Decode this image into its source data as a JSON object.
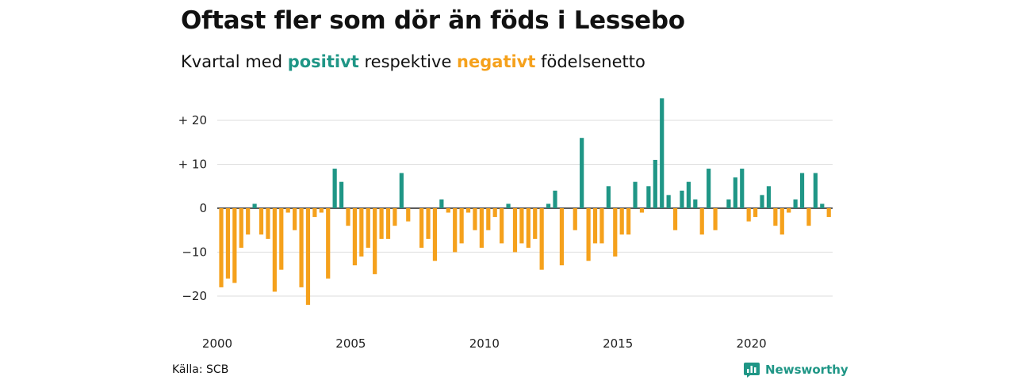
{
  "header": {
    "title": "Oftast fler som dör än föds i Lessebo",
    "subtitle_pre": "Kvartal med ",
    "subtitle_pos": "positivt",
    "subtitle_mid": " respektive ",
    "subtitle_neg": "negativt",
    "subtitle_post": " födelsenetto"
  },
  "footer": {
    "source": "Källa: SCB",
    "brand": "Newsworthy",
    "brand_icon": "bar-chart-logo-icon"
  },
  "colors": {
    "positive": "#1f9686",
    "negative": "#f5a11c",
    "grid": "#dddddd"
  },
  "chart_data": {
    "type": "bar",
    "xlabel": "",
    "ylabel": "",
    "ylim": [
      -25,
      25
    ],
    "y_ticks": [
      {
        "value": 20,
        "label": "+ 20"
      },
      {
        "value": 10,
        "label": "+ 10"
      },
      {
        "value": 0,
        "label": "0"
      },
      {
        "value": -10,
        "label": "−10"
      },
      {
        "value": -20,
        "label": "−20"
      }
    ],
    "x_ticks": [
      "2000",
      "2005",
      "2010",
      "2015",
      "2020"
    ],
    "start": "2000 Q1",
    "grid": true,
    "values": [
      -18,
      -16,
      -17,
      -9,
      -6,
      1,
      -6,
      -7,
      -19,
      -14,
      -1,
      -5,
      -18,
      -22,
      -2,
      -1,
      -16,
      9,
      6,
      -4,
      -13,
      -11,
      -9,
      -15,
      -7,
      -7,
      -4,
      8,
      -3,
      0,
      -9,
      -7,
      -12,
      2,
      -1,
      -10,
      -8,
      -1,
      -5,
      -9,
      -5,
      -2,
      -8,
      1,
      -10,
      -8,
      -9,
      -7,
      -14,
      1,
      4,
      -13,
      0,
      -5,
      16,
      -12,
      -8,
      -8,
      5,
      -11,
      -6,
      -6,
      6,
      -1,
      5,
      11,
      25,
      3,
      -5,
      4,
      6,
      2,
      -6,
      9,
      -5,
      0,
      2,
      7,
      9,
      -3,
      -2,
      3,
      5,
      -4,
      -6,
      -1,
      2,
      8,
      -4,
      8,
      1,
      -2
    ]
  }
}
